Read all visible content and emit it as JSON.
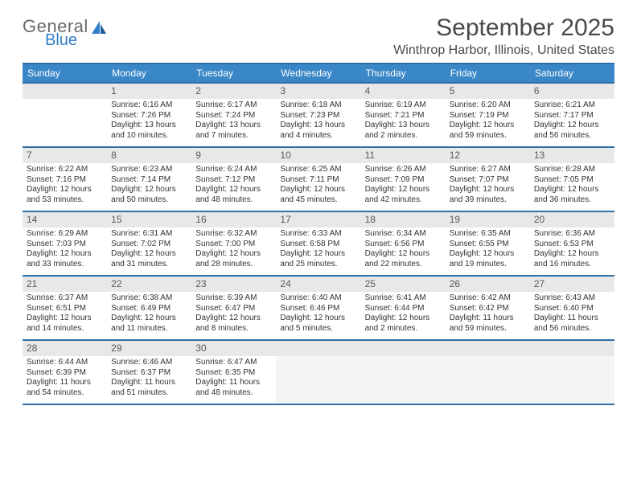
{
  "logo": {
    "general": "General",
    "blue": "Blue",
    "icon_color": "#2f7fc8"
  },
  "title": "September 2025",
  "location": "Winthrop Harbor, Illinois, United States",
  "colors": {
    "header_bg": "#3a87c8",
    "header_border": "#2f6fa8",
    "daynum_bg": "#e8e8e8",
    "filler_bg": "#f5f5f5",
    "text": "#333333"
  },
  "weekdays": [
    "Sunday",
    "Monday",
    "Tuesday",
    "Wednesday",
    "Thursday",
    "Friday",
    "Saturday"
  ],
  "weeks": [
    [
      {
        "empty": true
      },
      {
        "num": "1",
        "sunrise": "Sunrise: 6:16 AM",
        "sunset": "Sunset: 7:26 PM",
        "daylight1": "Daylight: 13 hours",
        "daylight2": "and 10 minutes."
      },
      {
        "num": "2",
        "sunrise": "Sunrise: 6:17 AM",
        "sunset": "Sunset: 7:24 PM",
        "daylight1": "Daylight: 13 hours",
        "daylight2": "and 7 minutes."
      },
      {
        "num": "3",
        "sunrise": "Sunrise: 6:18 AM",
        "sunset": "Sunset: 7:23 PM",
        "daylight1": "Daylight: 13 hours",
        "daylight2": "and 4 minutes."
      },
      {
        "num": "4",
        "sunrise": "Sunrise: 6:19 AM",
        "sunset": "Sunset: 7:21 PM",
        "daylight1": "Daylight: 13 hours",
        "daylight2": "and 2 minutes."
      },
      {
        "num": "5",
        "sunrise": "Sunrise: 6:20 AM",
        "sunset": "Sunset: 7:19 PM",
        "daylight1": "Daylight: 12 hours",
        "daylight2": "and 59 minutes."
      },
      {
        "num": "6",
        "sunrise": "Sunrise: 6:21 AM",
        "sunset": "Sunset: 7:17 PM",
        "daylight1": "Daylight: 12 hours",
        "daylight2": "and 56 minutes."
      }
    ],
    [
      {
        "num": "7",
        "sunrise": "Sunrise: 6:22 AM",
        "sunset": "Sunset: 7:16 PM",
        "daylight1": "Daylight: 12 hours",
        "daylight2": "and 53 minutes."
      },
      {
        "num": "8",
        "sunrise": "Sunrise: 6:23 AM",
        "sunset": "Sunset: 7:14 PM",
        "daylight1": "Daylight: 12 hours",
        "daylight2": "and 50 minutes."
      },
      {
        "num": "9",
        "sunrise": "Sunrise: 6:24 AM",
        "sunset": "Sunset: 7:12 PM",
        "daylight1": "Daylight: 12 hours",
        "daylight2": "and 48 minutes."
      },
      {
        "num": "10",
        "sunrise": "Sunrise: 6:25 AM",
        "sunset": "Sunset: 7:11 PM",
        "daylight1": "Daylight: 12 hours",
        "daylight2": "and 45 minutes."
      },
      {
        "num": "11",
        "sunrise": "Sunrise: 6:26 AM",
        "sunset": "Sunset: 7:09 PM",
        "daylight1": "Daylight: 12 hours",
        "daylight2": "and 42 minutes."
      },
      {
        "num": "12",
        "sunrise": "Sunrise: 6:27 AM",
        "sunset": "Sunset: 7:07 PM",
        "daylight1": "Daylight: 12 hours",
        "daylight2": "and 39 minutes."
      },
      {
        "num": "13",
        "sunrise": "Sunrise: 6:28 AM",
        "sunset": "Sunset: 7:05 PM",
        "daylight1": "Daylight: 12 hours",
        "daylight2": "and 36 minutes."
      }
    ],
    [
      {
        "num": "14",
        "sunrise": "Sunrise: 6:29 AM",
        "sunset": "Sunset: 7:03 PM",
        "daylight1": "Daylight: 12 hours",
        "daylight2": "and 33 minutes."
      },
      {
        "num": "15",
        "sunrise": "Sunrise: 6:31 AM",
        "sunset": "Sunset: 7:02 PM",
        "daylight1": "Daylight: 12 hours",
        "daylight2": "and 31 minutes."
      },
      {
        "num": "16",
        "sunrise": "Sunrise: 6:32 AM",
        "sunset": "Sunset: 7:00 PM",
        "daylight1": "Daylight: 12 hours",
        "daylight2": "and 28 minutes."
      },
      {
        "num": "17",
        "sunrise": "Sunrise: 6:33 AM",
        "sunset": "Sunset: 6:58 PM",
        "daylight1": "Daylight: 12 hours",
        "daylight2": "and 25 minutes."
      },
      {
        "num": "18",
        "sunrise": "Sunrise: 6:34 AM",
        "sunset": "Sunset: 6:56 PM",
        "daylight1": "Daylight: 12 hours",
        "daylight2": "and 22 minutes."
      },
      {
        "num": "19",
        "sunrise": "Sunrise: 6:35 AM",
        "sunset": "Sunset: 6:55 PM",
        "daylight1": "Daylight: 12 hours",
        "daylight2": "and 19 minutes."
      },
      {
        "num": "20",
        "sunrise": "Sunrise: 6:36 AM",
        "sunset": "Sunset: 6:53 PM",
        "daylight1": "Daylight: 12 hours",
        "daylight2": "and 16 minutes."
      }
    ],
    [
      {
        "num": "21",
        "sunrise": "Sunrise: 6:37 AM",
        "sunset": "Sunset: 6:51 PM",
        "daylight1": "Daylight: 12 hours",
        "daylight2": "and 14 minutes."
      },
      {
        "num": "22",
        "sunrise": "Sunrise: 6:38 AM",
        "sunset": "Sunset: 6:49 PM",
        "daylight1": "Daylight: 12 hours",
        "daylight2": "and 11 minutes."
      },
      {
        "num": "23",
        "sunrise": "Sunrise: 6:39 AM",
        "sunset": "Sunset: 6:47 PM",
        "daylight1": "Daylight: 12 hours",
        "daylight2": "and 8 minutes."
      },
      {
        "num": "24",
        "sunrise": "Sunrise: 6:40 AM",
        "sunset": "Sunset: 6:46 PM",
        "daylight1": "Daylight: 12 hours",
        "daylight2": "and 5 minutes."
      },
      {
        "num": "25",
        "sunrise": "Sunrise: 6:41 AM",
        "sunset": "Sunset: 6:44 PM",
        "daylight1": "Daylight: 12 hours",
        "daylight2": "and 2 minutes."
      },
      {
        "num": "26",
        "sunrise": "Sunrise: 6:42 AM",
        "sunset": "Sunset: 6:42 PM",
        "daylight1": "Daylight: 11 hours",
        "daylight2": "and 59 minutes."
      },
      {
        "num": "27",
        "sunrise": "Sunrise: 6:43 AM",
        "sunset": "Sunset: 6:40 PM",
        "daylight1": "Daylight: 11 hours",
        "daylight2": "and 56 minutes."
      }
    ],
    [
      {
        "num": "28",
        "sunrise": "Sunrise: 6:44 AM",
        "sunset": "Sunset: 6:39 PM",
        "daylight1": "Daylight: 11 hours",
        "daylight2": "and 54 minutes."
      },
      {
        "num": "29",
        "sunrise": "Sunrise: 6:46 AM",
        "sunset": "Sunset: 6:37 PM",
        "daylight1": "Daylight: 11 hours",
        "daylight2": "and 51 minutes."
      },
      {
        "num": "30",
        "sunrise": "Sunrise: 6:47 AM",
        "sunset": "Sunset: 6:35 PM",
        "daylight1": "Daylight: 11 hours",
        "daylight2": "and 48 minutes."
      },
      {
        "filler": true
      },
      {
        "filler": true
      },
      {
        "filler": true
      },
      {
        "filler": true
      }
    ]
  ]
}
